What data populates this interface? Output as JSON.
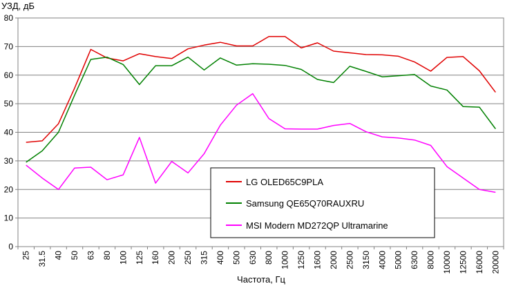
{
  "chart_data": {
    "type": "line",
    "title": "",
    "ylabel": "УЗД, дБ",
    "xlabel": "Частота, Гц",
    "ylim": [
      0,
      80
    ],
    "yticks": [
      0,
      10,
      20,
      30,
      40,
      50,
      60,
      70,
      80
    ],
    "grid": "horizontal",
    "legend_position": "bottom-right",
    "categories": [
      "25",
      "31.5",
      "40",
      "50",
      "63",
      "80",
      "100",
      "125",
      "160",
      "200",
      "250",
      "315",
      "400",
      "500",
      "630",
      "800",
      "1000",
      "1250",
      "1600",
      "2000",
      "2500",
      "3150",
      "4000",
      "5000",
      "6300",
      "8000",
      "10000",
      "12500",
      "16000",
      "20000"
    ],
    "series": [
      {
        "name": "LG OLED65C9PLA",
        "color": "#e00000",
        "values": [
          36.5,
          37,
          43,
          55.5,
          69,
          66,
          65,
          67.5,
          66.5,
          65.8,
          69.2,
          70.5,
          71.5,
          70.2,
          70.2,
          73.5,
          73.5,
          69.5,
          71.3,
          68.4,
          67.8,
          67.2,
          67.1,
          66.6,
          64.6,
          61.4,
          66.2,
          66.5,
          61.5,
          54
        ]
      },
      {
        "name": "Samsung QE65Q70RAUXRU",
        "color": "#008000",
        "values": [
          29.5,
          33.5,
          40,
          53,
          65.5,
          66.3,
          63.7,
          56.7,
          63.3,
          63.3,
          66.3,
          61.8,
          66,
          63.5,
          64,
          63.8,
          63.4,
          62,
          58.5,
          57.4,
          63.1,
          61.3,
          59.4,
          59.8,
          60.2,
          56.2,
          54.8,
          49,
          48.8,
          41.2
        ]
      },
      {
        "name": "MSI Modern MD272QP Ultramarine",
        "color": "#ff00ff",
        "values": [
          28.5,
          24,
          20,
          27.5,
          27.8,
          23.4,
          25.1,
          38.2,
          22.2,
          29.8,
          25.8,
          32.5,
          42.5,
          49.5,
          53.5,
          44.8,
          41.2,
          41.1,
          41.1,
          42.4,
          43.1,
          40.2,
          38.4,
          38,
          37.3,
          35.4,
          28,
          24,
          20,
          19
        ]
      }
    ]
  }
}
